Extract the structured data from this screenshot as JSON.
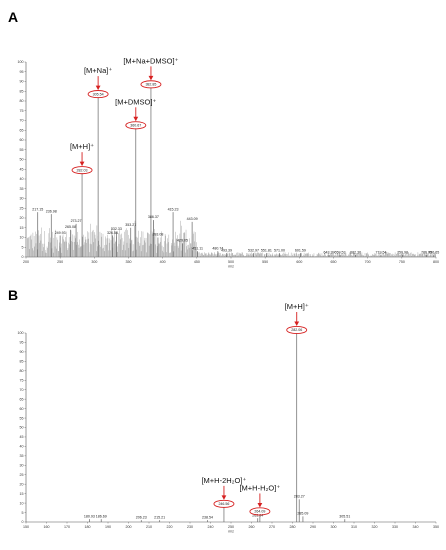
{
  "chart_data": [
    {
      "panel": "A",
      "type": "bar",
      "xlabel": "m/z",
      "xlim": [
        200,
        800
      ],
      "ylim": [
        0,
        100
      ],
      "x_ticks": [
        200,
        250,
        300,
        350,
        400,
        450,
        500,
        550,
        600,
        650,
        700,
        750,
        800
      ],
      "y_ticks": [
        0,
        5,
        10,
        15,
        20,
        25,
        30,
        35,
        40,
        45,
        50,
        55,
        60,
        65,
        70,
        75,
        80,
        85,
        90,
        95,
        100
      ],
      "peaks": [
        {
          "mz": "217.15",
          "y": 23
        },
        {
          "mz": "236.98",
          "y": 22
        },
        {
          "mz": "249.93",
          "y": 11
        },
        {
          "mz": "265.08",
          "y": 14
        },
        {
          "mz": "273.27",
          "y": 17
        },
        {
          "mz": "282.03",
          "y": 43,
          "circled": true
        },
        {
          "mz": "305.54",
          "y": 82,
          "circled": true
        },
        {
          "mz": "326.56",
          "y": 11
        },
        {
          "mz": "332.33",
          "y": 13
        },
        {
          "mz": "353.27",
          "y": 15
        },
        {
          "mz": "360.67",
          "y": 66,
          "circled": true
        },
        {
          "mz": "382.85",
          "y": 87,
          "circled": true
        },
        {
          "mz": "386.37",
          "y": 19
        },
        {
          "mz": "393.08",
          "y": 10
        },
        {
          "mz": "415.23",
          "y": 23
        },
        {
          "mz": "429.05",
          "y": 7
        },
        {
          "mz": "443.09",
          "y": 18
        },
        {
          "mz": "451.11",
          "y": 3
        },
        {
          "mz": "480.74",
          "y": 3
        },
        {
          "mz": "493.39",
          "y": 2
        },
        {
          "mz": "532.97",
          "y": 2
        },
        {
          "mz": "551.81",
          "y": 2
        },
        {
          "mz": "571.00",
          "y": 2
        },
        {
          "mz": "601.59",
          "y": 2
        },
        {
          "mz": "643.39",
          "y": 1
        },
        {
          "mz": "659.53",
          "y": 1
        },
        {
          "mz": "682.36",
          "y": 1
        },
        {
          "mz": "719.54",
          "y": 1
        },
        {
          "mz": "750.98",
          "y": 1
        },
        {
          "mz": "786.05",
          "y": 1
        },
        {
          "mz": "796.65",
          "y": 1
        }
      ],
      "annotations": [
        {
          "text": "[M+H]⁺",
          "mz": "282.03"
        },
        {
          "text": "[M+Na]⁺",
          "mz": "305.54"
        },
        {
          "text": "[M+DMSO]⁺",
          "mz": "360.67"
        },
        {
          "text": "[M+Na+DMSO]⁺",
          "mz": "382.85"
        }
      ]
    },
    {
      "panel": "B",
      "type": "bar",
      "xlabel": "m/z",
      "xlim": [
        150,
        350
      ],
      "ylim": [
        0,
        100
      ],
      "x_ticks": [
        150,
        160,
        170,
        180,
        190,
        200,
        210,
        220,
        230,
        240,
        250,
        260,
        270,
        280,
        290,
        300,
        310,
        320,
        330,
        340,
        350
      ],
      "y_ticks": [
        0,
        5,
        10,
        15,
        20,
        25,
        30,
        35,
        40,
        45,
        50,
        55,
        60,
        65,
        70,
        75,
        80,
        85,
        90,
        95,
        100
      ],
      "peaks": [
        {
          "mz": "180.93",
          "y": 1.5
        },
        {
          "mz": "186.69",
          "y": 1.5
        },
        {
          "mz": "206.23",
          "y": 1
        },
        {
          "mz": "215.21",
          "y": 1
        },
        {
          "mz": "238.54",
          "y": 1
        },
        {
          "mz": "246.56",
          "y": 8,
          "circled": true
        },
        {
          "mz": "263.04",
          "y": 2
        },
        {
          "mz": "264.09",
          "y": 4,
          "circled": true
        },
        {
          "mz": "282.06",
          "y": 100,
          "circled": true
        },
        {
          "mz": "283.27",
          "y": 12
        },
        {
          "mz": "285.09",
          "y": 3
        },
        {
          "mz": "305.51",
          "y": 1.5
        }
      ],
      "annotations": [
        {
          "text": "[M+H]⁺",
          "mz": "282.06"
        },
        {
          "text": "[M+H-2H₂O]⁺",
          "mz": "246.56"
        },
        {
          "text": "[M+H-H₂O]⁺",
          "mz": "264.09"
        }
      ]
    }
  ]
}
